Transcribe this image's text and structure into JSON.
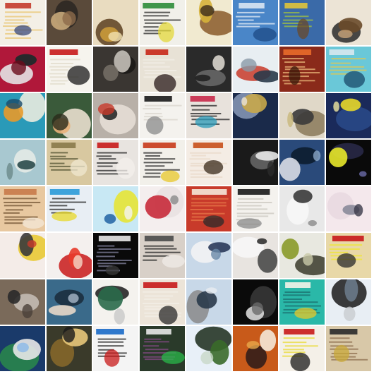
{
  "grid": {
    "rows": 8,
    "cols": 8,
    "tiles": [
      {
        "bg": "#f3efe6",
        "a": "#c43a2a",
        "b": "#3b4a7a",
        "c": "#e8c36a",
        "kind": "doc"
      },
      {
        "bg": "#5a4a3a",
        "a": "#c8a87a",
        "b": "#2a2622",
        "c": "#8d6b4b",
        "kind": "blob"
      },
      {
        "bg": "#e9dcc0",
        "a": "#c99a3a",
        "b": "#5c4020",
        "c": "#f3e2b0",
        "kind": "blob"
      },
      {
        "bg": "#f1f0ea",
        "a": "#2c8c3a",
        "b": "#e3d83a",
        "c": "#1c1c1c",
        "kind": "doc"
      },
      {
        "bg": "#f1ead0",
        "a": "#d6b23a",
        "b": "#8a5a2a",
        "c": "#3a2a1a",
        "kind": "blob"
      },
      {
        "bg": "#4a86c8",
        "a": "#d9e6f2",
        "b": "#1e4a86",
        "c": "#f0f4f8",
        "kind": "doc"
      },
      {
        "bg": "#3a6aa8",
        "a": "#e0c43a",
        "b": "#6a4a2a",
        "c": "#a8c83a",
        "kind": "doc"
      },
      {
        "bg": "#ece4d6",
        "a": "#6a4a2a",
        "b": "#2a2a2a",
        "c": "#c8a47a",
        "kind": "blob"
      },
      {
        "bg": "#b0183a",
        "a": "#1a2a2a",
        "b": "#e8f0f0",
        "c": "#6a0a1a",
        "kind": "blob"
      },
      {
        "bg": "#f6f4ee",
        "a": "#c81a1a",
        "b": "#1a1a1a",
        "c": "#e0d8c8",
        "kind": "doc"
      },
      {
        "bg": "#3a3632",
        "a": "#c4c0b8",
        "b": "#1a1816",
        "c": "#7a746a",
        "kind": "blob"
      },
      {
        "bg": "#e8e2d6",
        "a": "#c8281a",
        "b": "#2a1a1a",
        "c": "#f4f0e8",
        "kind": "doc"
      },
      {
        "bg": "#2a2a2a",
        "a": "#d8d4cc",
        "b": "#6a6a6a",
        "c": "#1a1a1a",
        "kind": "blob"
      },
      {
        "bg": "#e8eef2",
        "a": "#2a3a4a",
        "b": "#c83a2a",
        "c": "#8a9aa8",
        "kind": "blob"
      },
      {
        "bg": "#8a2a1a",
        "a": "#e86a2a",
        "b": "#3a1a0a",
        "c": "#f0c080",
        "kind": "doc"
      },
      {
        "bg": "#6ac8d8",
        "a": "#d8e8f0",
        "b": "#1a4a6a",
        "c": "#e8c84a",
        "kind": "doc"
      },
      {
        "bg": "#2a9ab8",
        "a": "#e89a2a",
        "b": "#f4f0e0",
        "c": "#1a4a6a",
        "kind": "blob"
      },
      {
        "bg": "#3a5a3a",
        "a": "#e8b07a",
        "b": "#f4e8d8",
        "c": "#2a2a1a",
        "kind": "blob"
      },
      {
        "bg": "#b8b0a8",
        "a": "#2a2a2a",
        "b": "#e8e0d8",
        "c": "#c83a2a",
        "kind": "blob"
      },
      {
        "bg": "#f4f2ee",
        "a": "#1a1a1a",
        "b": "#8a8a8a",
        "c": "#d8d4cc",
        "kind": "doc"
      },
      {
        "bg": "#e8e2dc",
        "a": "#c82a4a",
        "b": "#2a9ab8",
        "c": "#1a1a1a",
        "kind": "doc"
      },
      {
        "bg": "#1a2a4a",
        "a": "#c8a84a",
        "b": "#8a9ab8",
        "c": "#e8e4d8",
        "kind": "blob"
      },
      {
        "bg": "#e0d8c8",
        "a": "#3a3a3a",
        "b": "#8a7a5a",
        "c": "#c8b87a",
        "kind": "blob"
      },
      {
        "bg": "#1a2a5a",
        "a": "#e8d82a",
        "b": "#2a4a8a",
        "c": "#f0e8a0",
        "kind": "blob"
      },
      {
        "bg": "#a8c8d0",
        "a": "#2a4a4a",
        "b": "#e8ece8",
        "c": "#6a8a8a",
        "kind": "blob"
      },
      {
        "bg": "#d8c8a0",
        "a": "#8a7a4a",
        "b": "#f0e8d0",
        "c": "#4a4a2a",
        "kind": "doc"
      },
      {
        "bg": "#e8e4e0",
        "a": "#c81a1a",
        "b": "#f4f0ec",
        "c": "#1a1a1a",
        "kind": "doc"
      },
      {
        "bg": "#f2f0ea",
        "a": "#c83a1a",
        "b": "#e8c82a",
        "c": "#1a1a1a",
        "kind": "doc"
      },
      {
        "bg": "#f4ece4",
        "a": "#c8501a",
        "b": "#3a2a1a",
        "c": "#e8d8c8",
        "kind": "doc"
      },
      {
        "bg": "#1a1a1a",
        "a": "#e8e8e8",
        "b": "#6a6a6a",
        "c": "#2a2a2a",
        "kind": "blob"
      },
      {
        "bg": "#2a4a7a",
        "a": "#d8dce4",
        "b": "#0a1a2a",
        "c": "#8aa8c8",
        "kind": "blob"
      },
      {
        "bg": "#0a0a0a",
        "a": "#e8e82a",
        "b": "#2a2a4a",
        "c": "#6a6aa8",
        "kind": "blob"
      },
      {
        "bg": "#e8c8a0",
        "a": "#c87a4a",
        "b": "#f4e8d8",
        "c": "#6a4a2a",
        "kind": "doc"
      },
      {
        "bg": "#e8eef4",
        "a": "#2a9ad8",
        "b": "#e8d82a",
        "c": "#1a1a1a",
        "kind": "doc"
      },
      {
        "bg": "#c8e8f4",
        "a": "#2a6aa8",
        "b": "#e8e42a",
        "c": "#f4f4f4",
        "kind": "blob"
      },
      {
        "bg": "#f4eeee",
        "a": "#c82a3a",
        "b": "#e8e0e0",
        "c": "#8a8a8a",
        "kind": "blob"
      },
      {
        "bg": "#c83a2a",
        "a": "#f4e8d8",
        "b": "#2a2a2a",
        "c": "#e87a4a",
        "kind": "doc"
      },
      {
        "bg": "#f4f2ee",
        "a": "#1a1a1a",
        "b": "#8a8a8a",
        "c": "#c8c4bc",
        "kind": "doc"
      },
      {
        "bg": "#e8e8e8",
        "a": "#3a3a3a",
        "b": "#f8f8f8",
        "c": "#8a8a8a",
        "kind": "blob"
      },
      {
        "bg": "#f4e8ec",
        "a": "#8a8a9a",
        "b": "#e8d8e0",
        "c": "#3a3a4a",
        "kind": "blob"
      },
      {
        "bg": "#f4ece8",
        "a": "#3a3a3a",
        "b": "#e8c82a",
        "c": "#c83a2a",
        "kind": "blob"
      },
      {
        "bg": "#f4f0ee",
        "a": "#e83a2a",
        "b": "#c81a1a",
        "c": "#f4d8c8",
        "kind": "blob"
      },
      {
        "bg": "#0a0a0a",
        "a": "#e8e8e8",
        "b": "#3a3a3a",
        "c": "#8a8aa8",
        "kind": "doc"
      },
      {
        "bg": "#d8d0c8",
        "a": "#4a4a4a",
        "b": "#f0ece8",
        "c": "#1a1a1a",
        "kind": "doc"
      },
      {
        "bg": "#c8d8e8",
        "a": "#2a3a5a",
        "b": "#f4f4f4",
        "c": "#6a8aa8",
        "kind": "blob"
      },
      {
        "bg": "#e8e4e0",
        "a": "#4a4a4a",
        "b": "#f8f8f8",
        "c": "#1a1a1a",
        "kind": "blob"
      },
      {
        "bg": "#e8e8e0",
        "a": "#8a9a2a",
        "b": "#3a3a2a",
        "c": "#c8c8a8",
        "kind": "blob"
      },
      {
        "bg": "#e8d8a8",
        "a": "#c81a1a",
        "b": "#2a2a2a",
        "c": "#f0e82a",
        "kind": "doc"
      },
      {
        "bg": "#7a6a5a",
        "a": "#2a2a2a",
        "b": "#c8c0b8",
        "c": "#4a4038",
        "kind": "blob"
      },
      {
        "bg": "#3a6a8a",
        "a": "#e8d8c8",
        "b": "#1a2a3a",
        "c": "#a8b8c8",
        "kind": "blob"
      },
      {
        "bg": "#f4f2ee",
        "a": "#2a6a4a",
        "b": "#1a1a1a",
        "c": "#c8c8c8",
        "kind": "blob"
      },
      {
        "bg": "#ece4d8",
        "a": "#c81a1a",
        "b": "#2a2a2a",
        "c": "#f4f0e8",
        "kind": "doc"
      },
      {
        "bg": "#c8d8e8",
        "a": "#2a3a4a",
        "b": "#8a8a8a",
        "c": "#e8ecf0",
        "kind": "blob"
      },
      {
        "bg": "#0a0a0a",
        "a": "#d8d8d8",
        "b": "#3a3a3a",
        "c": "#6a6a6a",
        "kind": "blob"
      },
      {
        "bg": "#2ab8a8",
        "a": "#f4f4e8",
        "b": "#e8c82a",
        "c": "#1a6a6a",
        "kind": "doc"
      },
      {
        "bg": "#e8eef4",
        "a": "#6a7a8a",
        "b": "#1a1a1a",
        "c": "#c8ccd0",
        "kind": "blob"
      },
      {
        "bg": "#1a3a6a",
        "a": "#e8e8e8",
        "b": "#2a8a4a",
        "c": "#8ab8e8",
        "kind": "blob"
      },
      {
        "bg": "#3a3a2a",
        "a": "#e8c87a",
        "b": "#8a6a2a",
        "c": "#1a1a1a",
        "kind": "blob"
      },
      {
        "bg": "#f4f4f4",
        "a": "#1a6ac8",
        "b": "#c81a1a",
        "c": "#1a1a1a",
        "kind": "doc"
      },
      {
        "bg": "#2a3a2a",
        "a": "#e8e8e8",
        "b": "#2ab84a",
        "c": "#8a4a8a",
        "kind": "doc"
      },
      {
        "bg": "#e8f0f8",
        "a": "#3a6a2a",
        "b": "#1a2a1a",
        "c": "#c8d8c8",
        "kind": "blob"
      },
      {
        "bg": "#c85a1a",
        "a": "#f4e8d8",
        "b": "#2a1a1a",
        "c": "#e8a84a",
        "kind": "blob"
      },
      {
        "bg": "#f4f0e8",
        "a": "#c81a1a",
        "b": "#1a1a1a",
        "c": "#e8d82a",
        "kind": "doc"
      },
      {
        "bg": "#d8c8a8",
        "a": "#2a2a2a",
        "b": "#c8a83a",
        "c": "#8a6a4a",
        "kind": "doc"
      }
    ]
  }
}
